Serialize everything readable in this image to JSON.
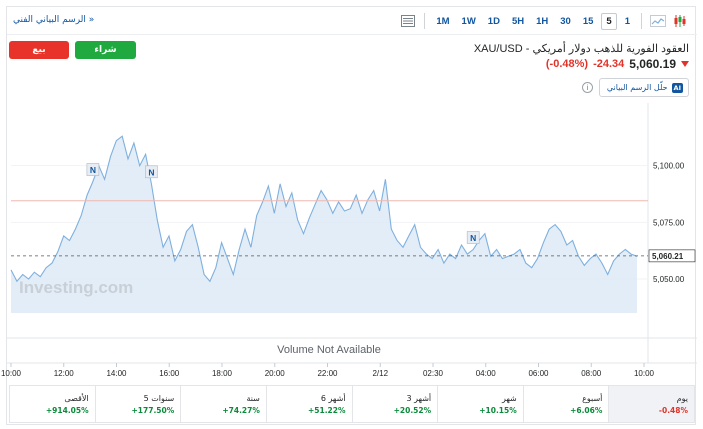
{
  "toolbar": {
    "full_chart_link": "الرسم البياني الفني »",
    "timeframes": [
      "1M",
      "1W",
      "1D",
      "5H",
      "1H",
      "30",
      "15",
      "5",
      "1"
    ],
    "active_timeframe": "5",
    "icons": [
      "table-icon",
      "area-chart-icon",
      "candlestick-icon"
    ]
  },
  "actions": {
    "sell_label": "بيع",
    "buy_label": "شراء"
  },
  "instrument": {
    "title": "XAU/USD - العقود الفورية للذهب دولار أمريكي",
    "price": "5,060.19",
    "change": "-24.34",
    "change_pct": "(-0.48%)",
    "direction": "down"
  },
  "analysis": {
    "label": "حلّل الرسم البياني",
    "badge": "AI",
    "info_icon": "info-icon"
  },
  "colors": {
    "accent": "#1256a0",
    "sell": "#e8332a",
    "buy": "#1fa93f",
    "negative": "#e0332a",
    "positive": "#0a8a3a",
    "line": "#7fb0de",
    "fill": "#dbe8f5"
  },
  "chart_data": {
    "type": "area",
    "x_ticks": [
      "10:00",
      "12:00",
      "14:00",
      "16:00",
      "18:00",
      "20:00",
      "22:00",
      "2/12",
      "02:30",
      "04:00",
      "06:00",
      "08:00",
      "10:00"
    ],
    "y_ticks": [
      "5,100.00",
      "5,075.00",
      "5,050.00"
    ],
    "y_range": [
      5035,
      5125
    ],
    "current_price_label": "5,060.21",
    "previous_close": 5084.5,
    "watermark": "Investing.com",
    "no_volume_text": "Volume Not Available",
    "news_markers": [
      "N",
      "N",
      "N"
    ],
    "series": [
      {
        "values": [
          5054,
          5049,
          5052,
          5050,
          5053,
          5051,
          5055,
          5057,
          5062,
          5069,
          5067,
          5072,
          5078,
          5087,
          5093,
          5100,
          5094,
          5104,
          5111,
          5113,
          5103,
          5110,
          5100,
          5105,
          5092,
          5076,
          5064,
          5069,
          5058,
          5063,
          5071,
          5074,
          5064,
          5052,
          5049,
          5055,
          5066,
          5059,
          5052,
          5063,
          5072,
          5064,
          5078,
          5084,
          5091,
          5079,
          5092,
          5082,
          5088,
          5076,
          5070,
          5077,
          5083,
          5089,
          5085,
          5079,
          5084,
          5080,
          5081,
          5087,
          5079,
          5085,
          5089,
          5080,
          5094,
          5072,
          5067,
          5064,
          5069,
          5074,
          5064,
          5061,
          5059,
          5063,
          5057,
          5061,
          5059,
          5065,
          5061,
          5063,
          5067,
          5070,
          5060,
          5063,
          5059,
          5060,
          5061,
          5063,
          5057,
          5055,
          5059,
          5066,
          5072,
          5074,
          5071,
          5065,
          5067,
          5060,
          5056,
          5059,
          5061,
          5057,
          5052,
          5058,
          5061,
          5063,
          5061,
          5060
        ]
      }
    ]
  },
  "periods": [
    {
      "label": "الأقصى",
      "value": "+914.05%",
      "sign": "pos"
    },
    {
      "label": "5 سنوات",
      "value": "+177.50%",
      "sign": "pos"
    },
    {
      "label": "سنة",
      "value": "+74.27%",
      "sign": "pos"
    },
    {
      "label": "6 أشهر",
      "value": "+51.22%",
      "sign": "pos"
    },
    {
      "label": "3 أشهر",
      "value": "+20.52%",
      "sign": "pos"
    },
    {
      "label": "شهر",
      "value": "+10.15%",
      "sign": "pos"
    },
    {
      "label": "أسبوع",
      "value": "+6.06%",
      "sign": "pos"
    },
    {
      "label": "يوم",
      "value": "-0.48%",
      "sign": "neg"
    }
  ]
}
